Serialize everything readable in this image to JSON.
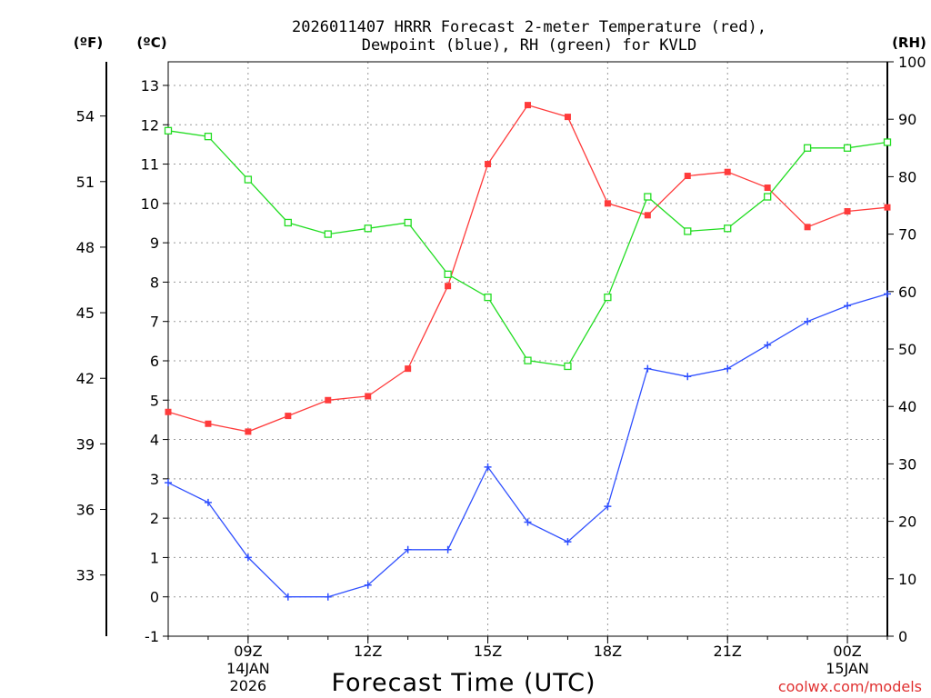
{
  "chart_data": {
    "type": "line",
    "title_line1": "2026011407 HRRR Forecast 2-meter Temperature (red),",
    "title_line2": "Dewpoint (blue), RH (green) for KVLD",
    "xlabel": "Forecast Time (UTC)",
    "credit": "coolwx.com/models",
    "units": {
      "left_f": "(ºF)",
      "left_c": "(ºC)",
      "right_rh": "(RH)"
    },
    "x_hours": [
      7,
      8,
      9,
      10,
      11,
      12,
      13,
      14,
      15,
      16,
      17,
      18,
      19,
      20,
      21,
      22,
      23,
      24,
      25
    ],
    "xlim": [
      7,
      25
    ],
    "ylim_c": [
      -1,
      13.6
    ],
    "ylim_rh": [
      0,
      100
    ],
    "y_ticks_c": [
      "-1",
      "0",
      "1",
      "2",
      "3",
      "4",
      "5",
      "6",
      "7",
      "8",
      "9",
      "10",
      "11",
      "12",
      "13"
    ],
    "y_ticks_f": [
      "33",
      "36",
      "39",
      "42",
      "45",
      "48",
      "51",
      "54"
    ],
    "y_ticks_rh": [
      "0",
      "10",
      "20",
      "30",
      "40",
      "50",
      "60",
      "70",
      "80",
      "90",
      "100"
    ],
    "x_ticks": [
      {
        "hour": 9,
        "label": "09Z",
        "sub1": "14JAN",
        "sub2": "2026"
      },
      {
        "hour": 12,
        "label": "12Z",
        "sub1": "",
        "sub2": ""
      },
      {
        "hour": 15,
        "label": "15Z",
        "sub1": "",
        "sub2": ""
      },
      {
        "hour": 18,
        "label": "18Z",
        "sub1": "",
        "sub2": ""
      },
      {
        "hour": 21,
        "label": "21Z",
        "sub1": "",
        "sub2": ""
      },
      {
        "hour": 24,
        "label": "00Z",
        "sub1": "15JAN",
        "sub2": ""
      }
    ],
    "series": [
      {
        "name": "2-meter Temperature (°C)",
        "axis": "c",
        "color": "#ff3b3b",
        "marker": "filled-square",
        "values": [
          4.7,
          4.4,
          4.2,
          4.6,
          5.0,
          5.1,
          5.8,
          7.9,
          11.0,
          12.5,
          12.2,
          10.0,
          9.7,
          10.7,
          10.8,
          10.4,
          9.4,
          9.8,
          9.9
        ]
      },
      {
        "name": "Dewpoint (°C)",
        "axis": "c",
        "color": "#3050ff",
        "marker": "plus",
        "values": [
          2.9,
          2.4,
          1.0,
          0.0,
          0.0,
          0.3,
          1.2,
          1.2,
          3.3,
          1.9,
          1.4,
          2.3,
          5.8,
          5.6,
          5.8,
          6.4,
          7.0,
          7.4,
          7.7
        ]
      },
      {
        "name": "Relative Humidity (%)",
        "axis": "rh",
        "color": "#22dd22",
        "marker": "open-square",
        "values": [
          88.0,
          87.0,
          79.5,
          72.0,
          70.0,
          71.0,
          72.0,
          63.0,
          59.0,
          48.0,
          47.0,
          59.0,
          76.5,
          70.5,
          71.0,
          76.5,
          85.0,
          85.0,
          86.0
        ]
      }
    ]
  }
}
